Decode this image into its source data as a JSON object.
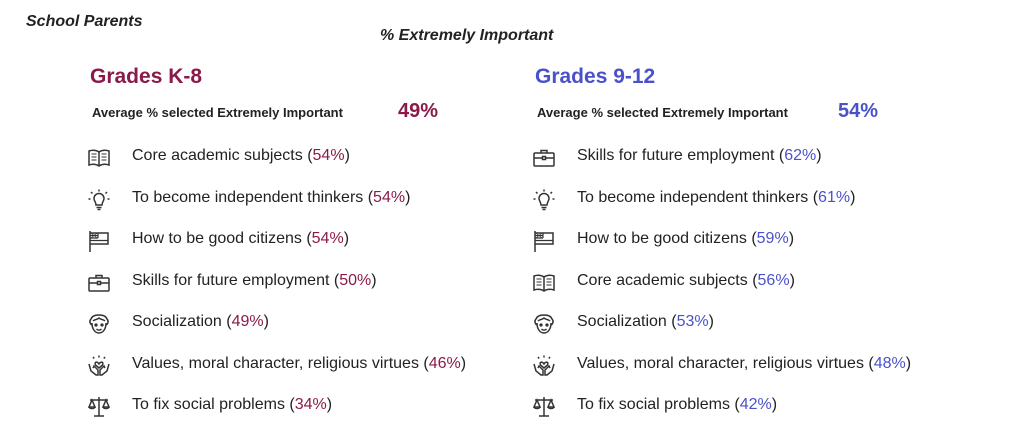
{
  "header": {
    "corner_title": "School Parents",
    "main_title": "% Extremely Important"
  },
  "colors": {
    "k8_accent": "#8b1a4a",
    "hs_accent": "#4a52c9"
  },
  "k8": {
    "title": "Grades K-8",
    "avg_label": "Average % selected Extremely Important",
    "avg_value": "49%",
    "items": [
      {
        "icon": "book-icon",
        "label": "Core academic subjects",
        "pct": "54%"
      },
      {
        "icon": "lightbulb-icon",
        "label": "To become independent thinkers",
        "pct": "54%"
      },
      {
        "icon": "flag-icon",
        "label": "How to be good citizens",
        "pct": "54%"
      },
      {
        "icon": "briefcase-icon",
        "label": "Skills for future employment",
        "pct": "50%"
      },
      {
        "icon": "face-icon",
        "label": "Socialization",
        "pct": "49%"
      },
      {
        "icon": "hands-heart-icon",
        "label": "Values, moral character, religious virtues",
        "pct": "46%"
      },
      {
        "icon": "scales-icon",
        "label": "To fix social problems",
        "pct": "34%"
      }
    ]
  },
  "hs": {
    "title": "Grades 9-12",
    "avg_label": "Average % selected Extremely Important",
    "avg_value": "54%",
    "items": [
      {
        "icon": "briefcase-icon",
        "label": "Skills for future employment",
        "pct": "62%"
      },
      {
        "icon": "lightbulb-icon",
        "label": "To become independent thinkers",
        "pct": "61%"
      },
      {
        "icon": "flag-icon",
        "label": "How to be good citizens",
        "pct": "59%"
      },
      {
        "icon": "book-icon",
        "label": "Core academic subjects",
        "pct": "56%"
      },
      {
        "icon": "face-icon",
        "label": "Socialization",
        "pct": "53%"
      },
      {
        "icon": "hands-heart-icon",
        "label": "Values, moral character, religious virtues",
        "pct": "48%"
      },
      {
        "icon": "scales-icon",
        "label": "To fix social problems",
        "pct": "42%"
      }
    ]
  }
}
